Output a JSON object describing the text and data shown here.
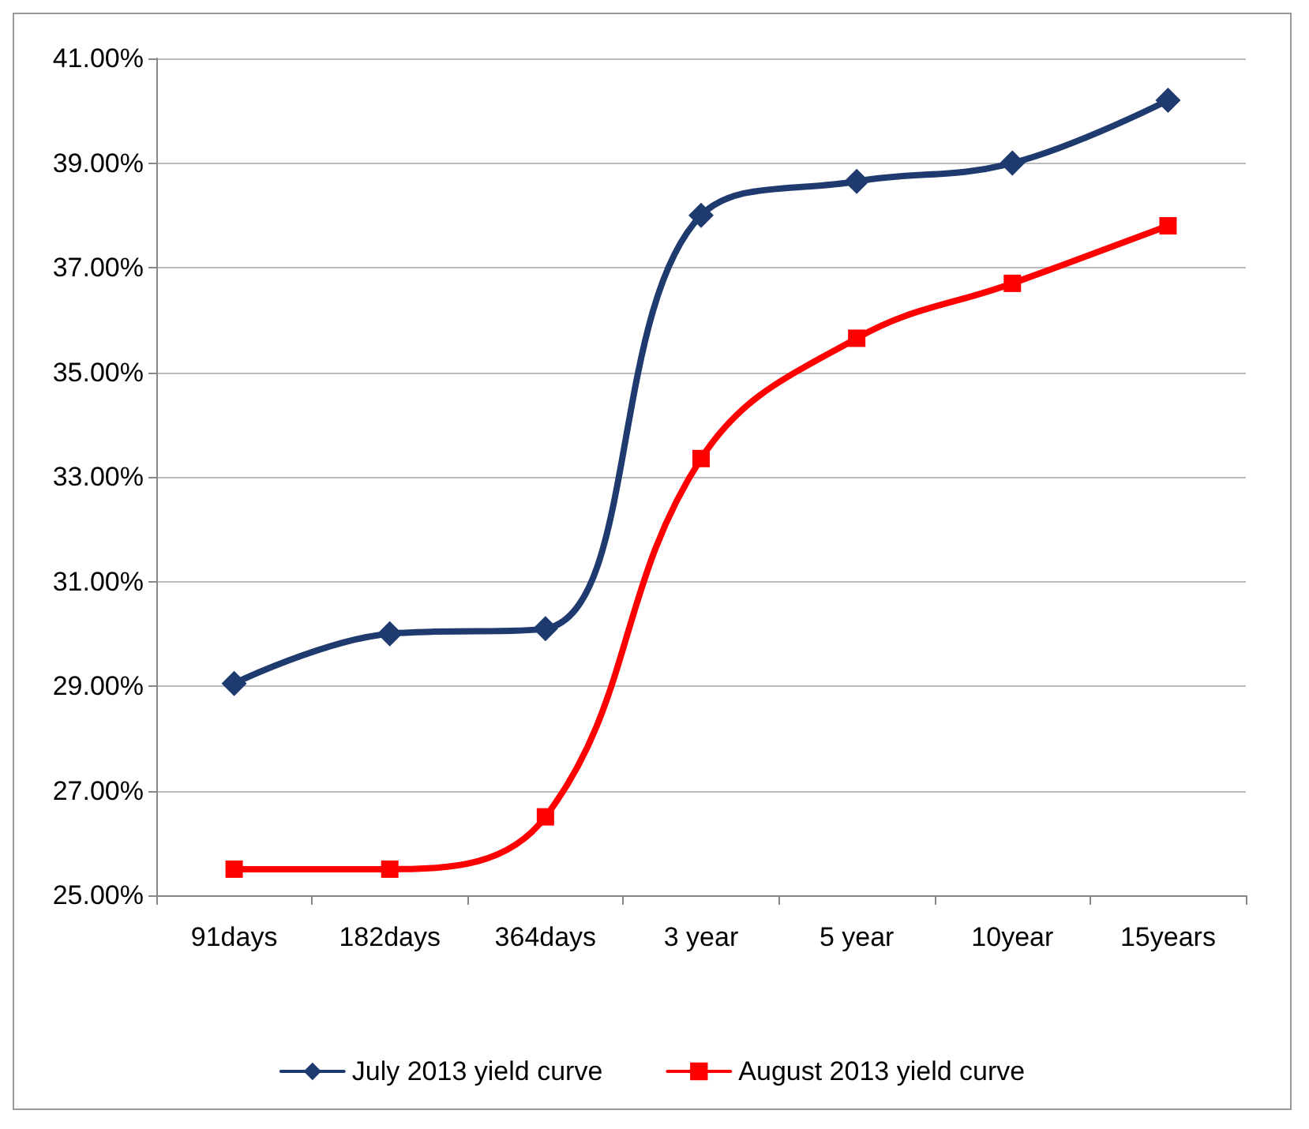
{
  "chart_data": {
    "type": "line",
    "categories": [
      "91days",
      "182days",
      "364days",
      "3 year",
      "5 year",
      "10year",
      "15years"
    ],
    "series": [
      {
        "name": "July 2013 yield curve",
        "color": "#1f3a6e",
        "marker": "diamond",
        "values": [
          29.05,
          30.0,
          30.1,
          38.0,
          38.65,
          39.0,
          40.2
        ]
      },
      {
        "name": "August 2013 yield curve",
        "color": "#ff0000",
        "marker": "square",
        "values": [
          25.5,
          25.5,
          26.5,
          33.35,
          35.65,
          36.7,
          37.8
        ]
      }
    ],
    "ylim": [
      25,
      41
    ],
    "yticks": [
      {
        "value": 25,
        "label": "25.00%"
      },
      {
        "value": 27,
        "label": "27.00%"
      },
      {
        "value": 29,
        "label": "29.00%"
      },
      {
        "value": 31,
        "label": "31.00%"
      },
      {
        "value": 33,
        "label": "33.00%"
      },
      {
        "value": 35,
        "label": "35.00%"
      },
      {
        "value": 37,
        "label": "37.00%"
      },
      {
        "value": 39,
        "label": "39.00%"
      },
      {
        "value": 41,
        "label": "41.00%"
      }
    ],
    "grid": "y",
    "legend": "bottom",
    "line_style": "solid"
  }
}
